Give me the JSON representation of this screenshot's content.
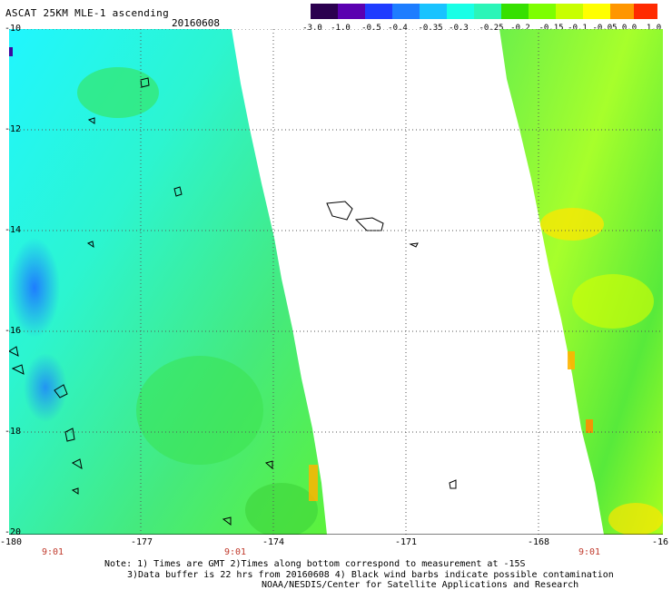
{
  "header": {
    "title": "ASCAT 25KM MLE-1 ascending",
    "date": "20160608"
  },
  "colorbar": {
    "labels": [
      "-3.0",
      "-1.0",
      "-0.5",
      "-0.4",
      "-0.35",
      "-0.3",
      "-0.25",
      "-0.2",
      "-0.15",
      "-0.1",
      "-0.05",
      "0.0",
      "1.0"
    ],
    "colors": [
      "#2b004f",
      "#5a00b0",
      "#1f3cff",
      "#1e7dff",
      "#19c3ff",
      "#19ffe6",
      "#2bf5b8",
      "#36e000",
      "#7dff00",
      "#c8ff00",
      "#ffff00",
      "#ff9600",
      "#ff2a00"
    ]
  },
  "map": {
    "lat_labels": [
      "-10",
      "-12",
      "-14",
      "-16",
      "-18",
      "-20"
    ],
    "lon_labels": [
      "-180",
      "-177",
      "-174",
      "-171",
      "-168",
      "-16"
    ],
    "time_labels": [
      "9:01",
      "9:01",
      "9:01"
    ],
    "swath_left_color": "#22ffe0",
    "swath_right_color": "#54ff3a",
    "accent_orange": "#ffb400"
  },
  "notes": {
    "line1": "Note: 1) Times are GMT 2)Times along bottom correspond to measurement at -15S",
    "line2": "3)Data buffer is 22 hrs from 20160608 4) Black wind barbs indicate possible contamination",
    "line3": "NOAA/NESDIS/Center for Satellite Applications and Research"
  }
}
